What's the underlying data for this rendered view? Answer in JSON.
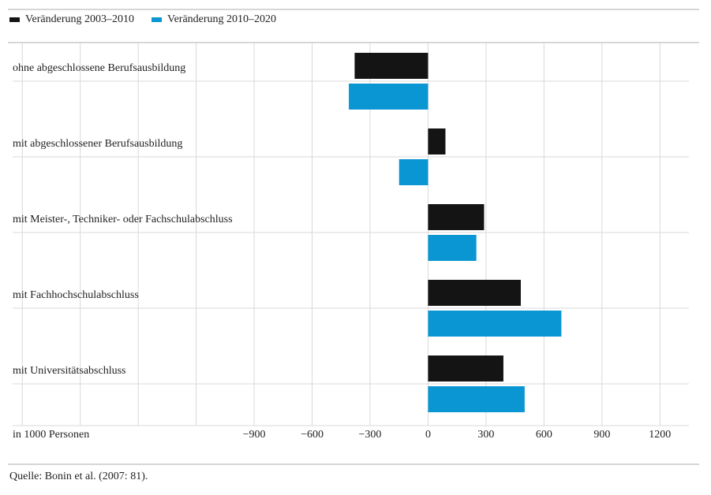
{
  "legend": {
    "series_1_label": "Veränderung 2003–2010",
    "series_2_label": "Veränderung 2010–2020"
  },
  "colors": {
    "series_1": "#141414",
    "series_2": "#0a96d3",
    "grid": "#d9d9d9"
  },
  "source_text": "Quelle: Bonin et al. (2007: 81).",
  "chart_data": {
    "type": "bar",
    "orientation": "horizontal",
    "categories": [
      "ohne abgeschlossene Berufsausbildung",
      "mit abgeschlossener Berufsausbildung",
      "mit Meister-, Techniker- oder Fachschulabschluss",
      "mit Fachhochschulabschluss",
      "mit Universitätsabschluss"
    ],
    "series": [
      {
        "name": "Veränderung 2003–2010",
        "values": [
          -380,
          90,
          290,
          480,
          390
        ]
      },
      {
        "name": "Veränderung 2010–2020",
        "values": [
          -410,
          -150,
          250,
          690,
          500
        ]
      }
    ],
    "xlabel": "in 1000 Personen",
    "xlim": [
      -2150,
      1350
    ],
    "xticks": [
      -900,
      -600,
      -300,
      0,
      300,
      600,
      900,
      1200
    ],
    "xtick_labels": [
      "−900",
      "−600",
      "−300",
      "0",
      "300",
      "600",
      "900",
      "1200"
    ],
    "grid": true,
    "legend_position": "top-left"
  }
}
